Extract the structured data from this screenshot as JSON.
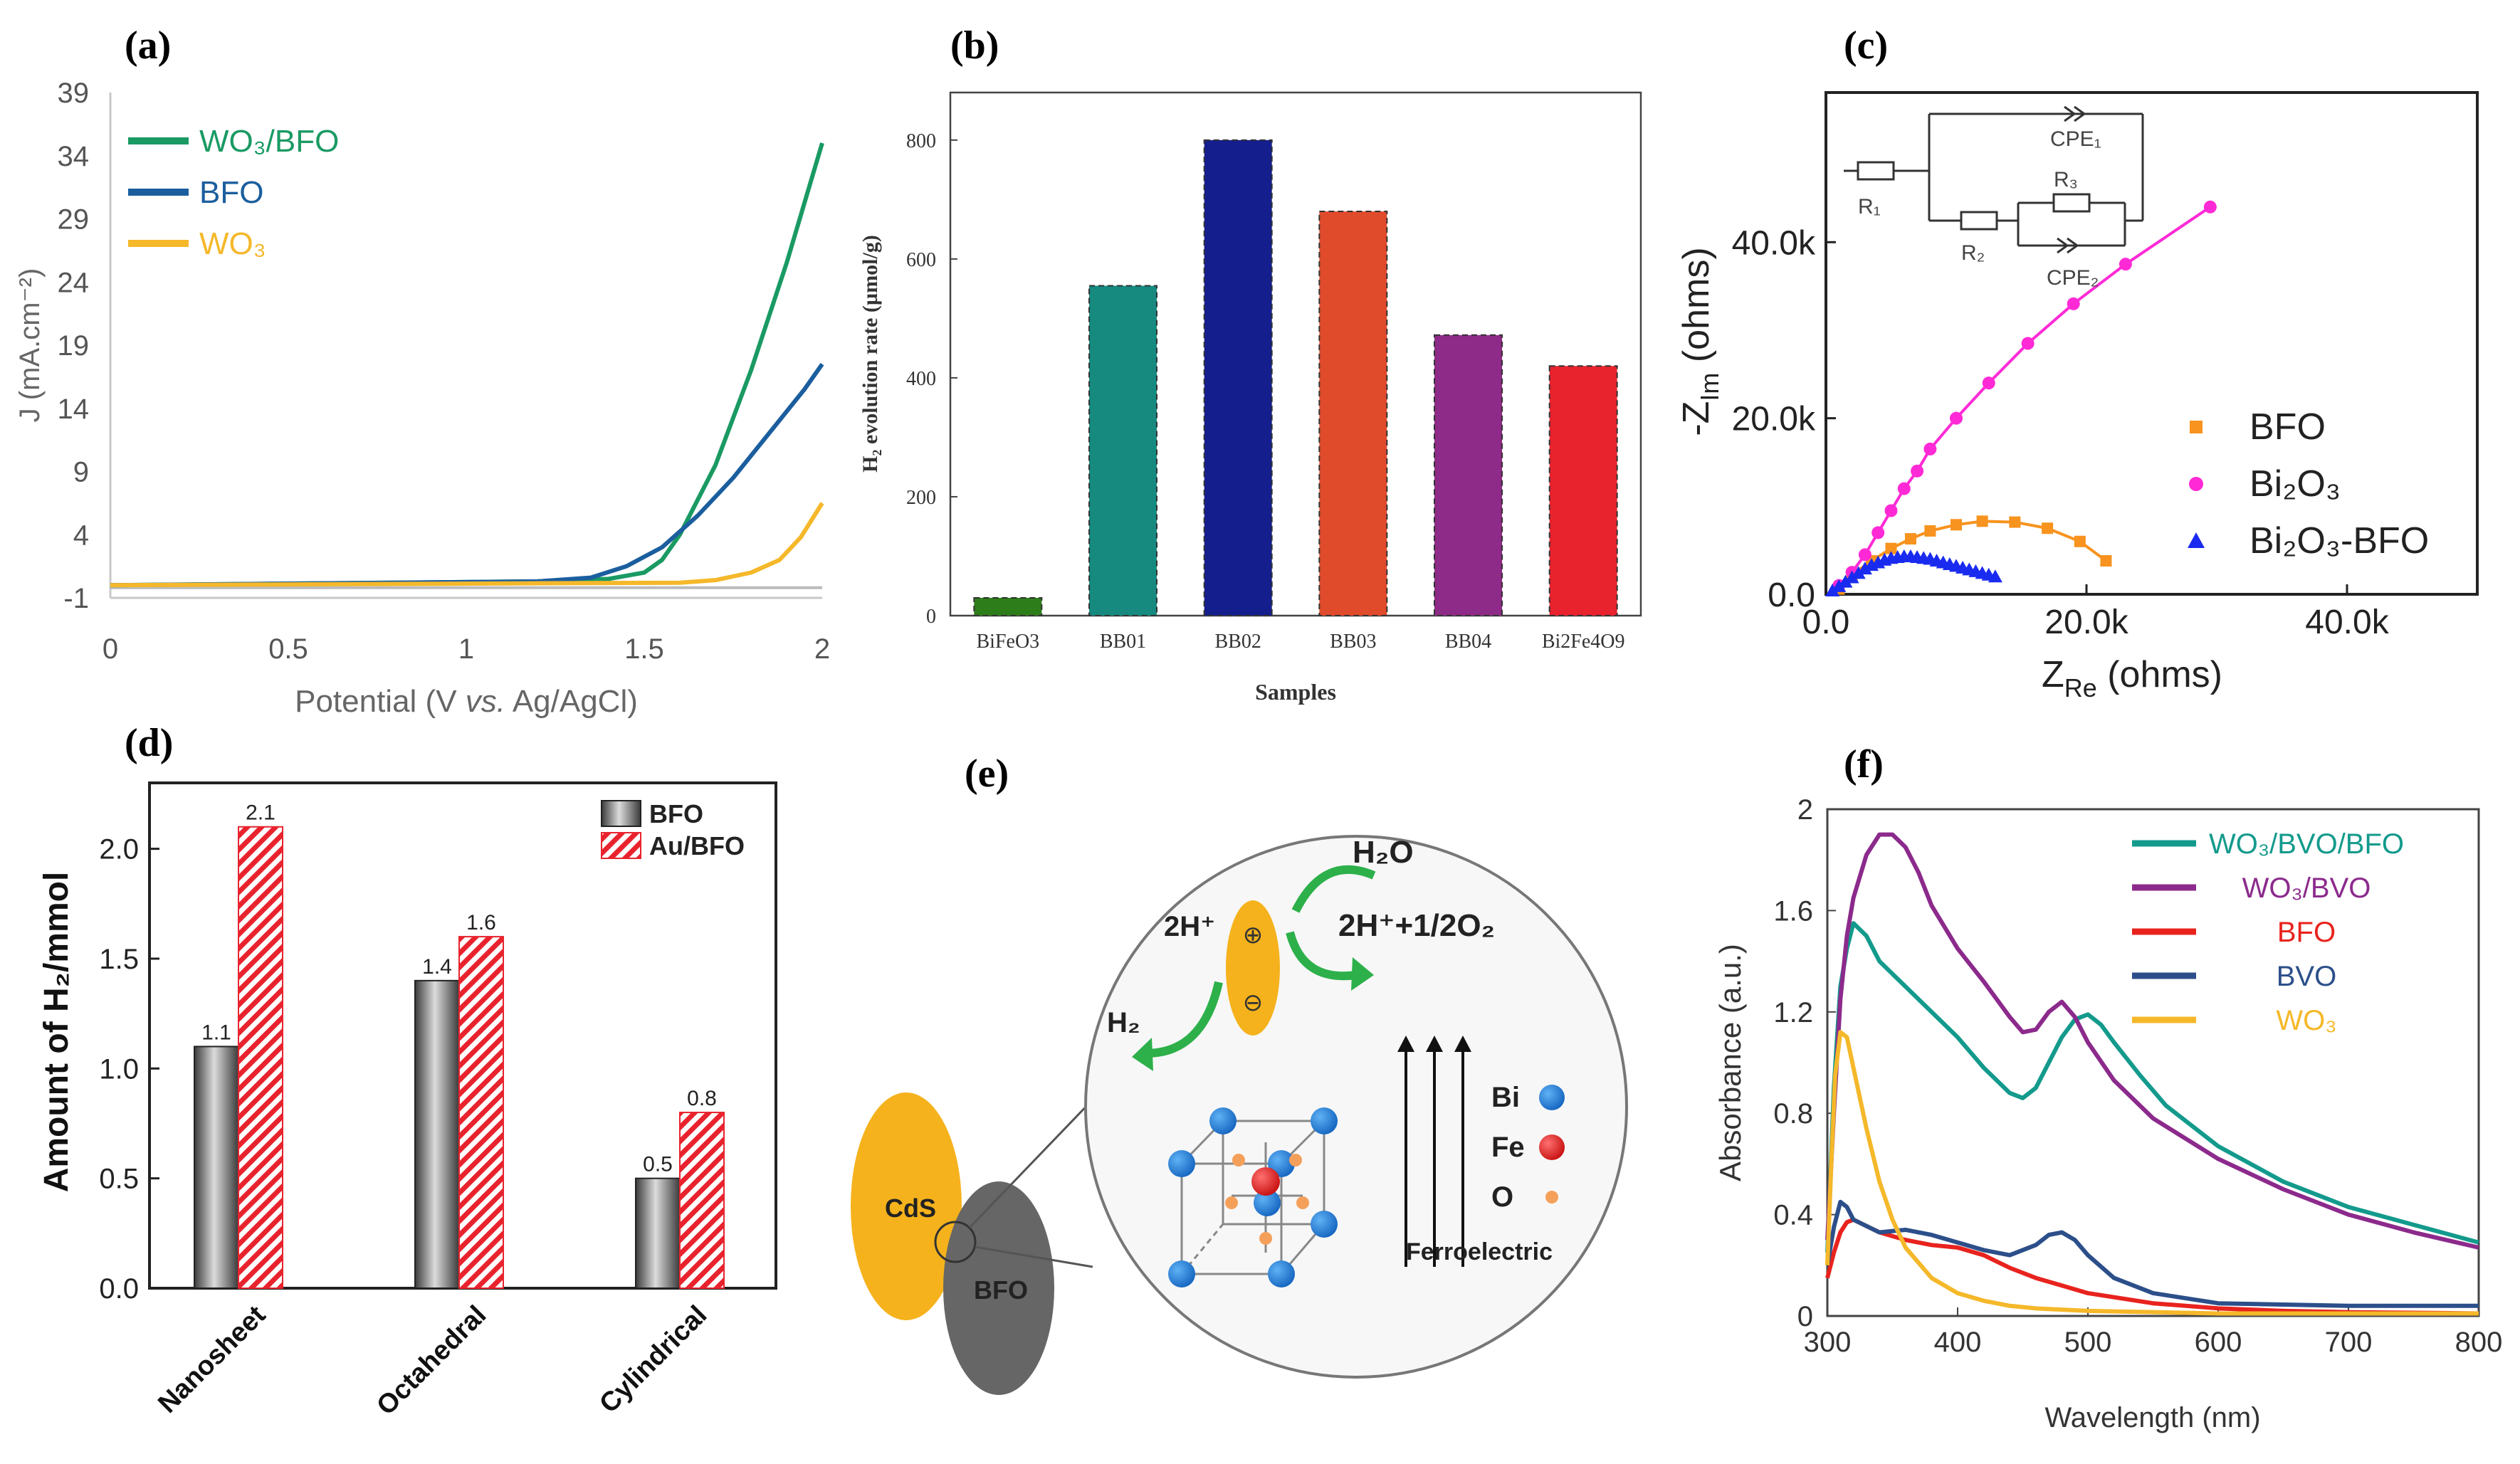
{
  "panel_labels": [
    "(a)",
    "(b)",
    "(c)",
    "(d)",
    "(e)",
    "(f)"
  ],
  "colors": {
    "green": "#1a9a63",
    "blue": "#1b5e9e",
    "yellow": "#f5b82a",
    "magenta": "#ff2ad6",
    "orange": "#f7931e",
    "tri_blue": "#1a2bf0",
    "red": "#e8231e",
    "purple": "#8c2a8c",
    "teal": "#139a8c",
    "darkblue": "#2c4f8a"
  },
  "chart_data": [
    {
      "id": "a",
      "type": "line",
      "xlabel_parts": [
        "Potential (V ",
        "vs.",
        " Ag/AgCl)"
      ],
      "ylabel": "J (mA.cm⁻²)",
      "xticks": [
        "0",
        "0.5",
        "1",
        "1.5",
        "2"
      ],
      "yticks": [
        "-1",
        "4",
        "9",
        "14",
        "19",
        "24",
        "29",
        "34",
        "39"
      ],
      "xlim": [
        0,
        2
      ],
      "ylim": [
        -1,
        39
      ],
      "series": [
        {
          "name": "WO₃/BFO",
          "color": "#1a9a63",
          "x": [
            0,
            1.2,
            1.4,
            1.5,
            1.55,
            1.6,
            1.7,
            1.8,
            1.9,
            2.0
          ],
          "y": [
            0,
            0.3,
            0.5,
            1,
            2,
            4,
            9.5,
            17,
            25.5,
            35
          ]
        },
        {
          "name": "BFO",
          "color": "#1b5e9e",
          "x": [
            0,
            1.2,
            1.35,
            1.45,
            1.55,
            1.65,
            1.75,
            1.85,
            1.95,
            2.0
          ],
          "y": [
            0,
            0.3,
            0.6,
            1.5,
            3,
            5.5,
            8.5,
            12,
            15.5,
            17.5
          ]
        },
        {
          "name": "WO₃",
          "color": "#f5b82a",
          "x": [
            0,
            1.6,
            1.7,
            1.8,
            1.88,
            1.94,
            2.0
          ],
          "y": [
            0,
            0.2,
            0.4,
            1,
            2,
            3.8,
            6.5
          ]
        }
      ]
    },
    {
      "id": "b",
      "type": "bar",
      "xlabel": "Samples",
      "ylabel": "H₂ evolution rate (µmol/g)",
      "categories": [
        "BiFeO3",
        "BB01",
        "BB02",
        "BB03",
        "BB04",
        "Bi2Fe4O9"
      ],
      "values": [
        30,
        555,
        800,
        680,
        472,
        420
      ],
      "colors": [
        "#2d7d1a",
        "#168a7f",
        "#141e8c",
        "#e04b2c",
        "#8e2a87",
        "#e8232e"
      ],
      "yticks": [
        "0",
        "200",
        "400",
        "600",
        "800"
      ],
      "ylim": [
        0,
        880
      ]
    },
    {
      "id": "c",
      "type": "scatter",
      "xlabel": "Z",
      "xlabel_sub": "Re",
      "xlabel_rest": " (ohms)",
      "ylabel": "-Z",
      "ylabel_sub": "Im",
      "ylabel_rest": " (ohms)",
      "xticks": [
        "0.0",
        "20.0k",
        "40.0k"
      ],
      "yticks": [
        "0.0",
        "20.0k",
        "40.0k"
      ],
      "xlim": [
        0,
        50000
      ],
      "ylim": [
        0,
        57000
      ],
      "series": [
        {
          "name": "BFO",
          "color": "#f7931e",
          "marker": "square",
          "x": [
            1000,
            2000,
            3500,
            5000,
            6500,
            8000,
            10000,
            12000,
            14500,
            17000,
            19500,
            21500
          ],
          "y": [
            600,
            2200,
            3800,
            5200,
            6300,
            7200,
            7900,
            8300,
            8200,
            7500,
            6000,
            3800
          ]
        },
        {
          "name": "Bi₂O₃",
          "color": "#ff2ad6",
          "marker": "circle",
          "x": [
            1000,
            2000,
            3000,
            4000,
            5000,
            6000,
            7000,
            8000,
            10000,
            12500,
            15500,
            19000,
            23000,
            29500
          ],
          "y": [
            1000,
            2500,
            4500,
            7000,
            9500,
            12000,
            14000,
            16500,
            20000,
            24000,
            28500,
            33000,
            37500,
            44000
          ]
        },
        {
          "name": "Bi₂O₃-BFO",
          "color": "#1a2bf0",
          "marker": "triangle",
          "x": [
            500,
            1000,
            1500,
            2000,
            2500,
            3000,
            3500,
            4000,
            4500,
            5000,
            5500,
            6000,
            6500,
            7000,
            7500,
            8000,
            8500,
            9000,
            9500,
            10000,
            10500,
            11000,
            11500,
            12000,
            12500,
            13000
          ],
          "y": [
            400,
            900,
            1400,
            1900,
            2400,
            2900,
            3300,
            3600,
            3900,
            4100,
            4200,
            4300,
            4300,
            4200,
            4100,
            4000,
            3800,
            3600,
            3400,
            3200,
            3000,
            2800,
            2600,
            2400,
            2200,
            2000
          ]
        }
      ],
      "inset": {
        "labels": [
          "R₁",
          "R₂",
          "R₃",
          "CPE₁",
          "CPE₂"
        ]
      }
    },
    {
      "id": "d",
      "type": "bar",
      "ylabel": "Amount of H₂/mmol",
      "categories": [
        "Nanosheet",
        "Octahedral",
        "Cylindrical"
      ],
      "series": [
        {
          "name": "BFO",
          "values": [
            1.1,
            1.4,
            0.5
          ],
          "labels": [
            "1.1",
            "1.4",
            "0.5"
          ]
        },
        {
          "name": "Au/BFO",
          "values": [
            2.1,
            1.6,
            0.8
          ],
          "labels": [
            "2.1",
            "1.6",
            "0.8"
          ]
        }
      ],
      "yticks": [
        "0.0",
        "0.5",
        "1.0",
        "1.5",
        "2.0"
      ],
      "ylim": [
        0,
        2.3
      ]
    },
    {
      "id": "f",
      "type": "line",
      "xlabel": "Wavelength (nm)",
      "ylabel": "Absorbance (a.u.)",
      "xticks": [
        "300",
        "400",
        "500",
        "600",
        "700",
        "800"
      ],
      "yticks": [
        "0",
        "0.4",
        "0.8",
        "1.2",
        "1.6",
        "2"
      ],
      "xlim": [
        300,
        800
      ],
      "ylim": [
        0,
        2
      ],
      "series": [
        {
          "name": "WO₃/BVO/BFO",
          "color": "#139a8c",
          "x": [
            300,
            305,
            310,
            315,
            320,
            330,
            340,
            360,
            380,
            400,
            420,
            440,
            450,
            460,
            470,
            480,
            490,
            500,
            510,
            520,
            540,
            560,
            600,
            650,
            700,
            750,
            800
          ],
          "y": [
            0.25,
            0.9,
            1.3,
            1.45,
            1.55,
            1.5,
            1.4,
            1.3,
            1.2,
            1.1,
            0.98,
            0.88,
            0.86,
            0.9,
            1.0,
            1.1,
            1.17,
            1.19,
            1.15,
            1.08,
            0.95,
            0.83,
            0.67,
            0.53,
            0.43,
            0.36,
            0.29
          ]
        },
        {
          "name": "WO₃/BVO",
          "color": "#8c2a8c",
          "x": [
            300,
            305,
            310,
            315,
            320,
            330,
            340,
            350,
            360,
            370,
            380,
            400,
            420,
            440,
            450,
            460,
            470,
            480,
            490,
            500,
            520,
            550,
            600,
            650,
            700,
            750,
            800
          ],
          "y": [
            0.3,
            0.8,
            1.25,
            1.5,
            1.65,
            1.82,
            1.9,
            1.9,
            1.85,
            1.75,
            1.62,
            1.45,
            1.32,
            1.18,
            1.12,
            1.13,
            1.2,
            1.24,
            1.18,
            1.08,
            0.93,
            0.78,
            0.62,
            0.5,
            0.4,
            0.33,
            0.27
          ]
        },
        {
          "name": "BFO",
          "color": "#e8231e",
          "x": [
            300,
            305,
            310,
            315,
            320,
            340,
            360,
            380,
            400,
            420,
            440,
            460,
            480,
            500,
            550,
            600,
            650,
            700,
            800
          ],
          "y": [
            0.15,
            0.25,
            0.33,
            0.37,
            0.38,
            0.33,
            0.3,
            0.28,
            0.27,
            0.24,
            0.19,
            0.15,
            0.12,
            0.09,
            0.05,
            0.03,
            0.02,
            0.015,
            0.01
          ]
        },
        {
          "name": "BVO",
          "color": "#2c4f8a",
          "x": [
            300,
            305,
            310,
            315,
            320,
            340,
            360,
            380,
            400,
            420,
            440,
            460,
            470,
            480,
            490,
            500,
            520,
            550,
            600,
            700,
            800
          ],
          "y": [
            0.2,
            0.35,
            0.45,
            0.43,
            0.38,
            0.33,
            0.34,
            0.32,
            0.29,
            0.26,
            0.24,
            0.28,
            0.32,
            0.33,
            0.3,
            0.24,
            0.15,
            0.09,
            0.05,
            0.04,
            0.04
          ]
        },
        {
          "name": "WO₃",
          "color": "#f5b82a",
          "x": [
            300,
            303,
            306,
            310,
            315,
            320,
            330,
            340,
            350,
            360,
            380,
            400,
            420,
            440,
            460,
            500,
            600,
            800
          ],
          "y": [
            0.2,
            0.6,
            0.95,
            1.12,
            1.1,
            0.98,
            0.74,
            0.53,
            0.38,
            0.27,
            0.15,
            0.09,
            0.06,
            0.04,
            0.03,
            0.02,
            0.01,
            0.01
          ]
        }
      ]
    }
  ],
  "schematic": {
    "cds_label": "CdS",
    "bfo_label": "BFO",
    "h2o_label": "H₂O",
    "h_label": "2H⁺",
    "h_o2_label": "2H⁺+1/2O₂",
    "h2_label": "H₂",
    "plus_label": "⊕",
    "minus_label": "⊖",
    "legend": [
      "Bi",
      "Fe",
      "O"
    ],
    "ferro_label": "Ferroelectric"
  }
}
